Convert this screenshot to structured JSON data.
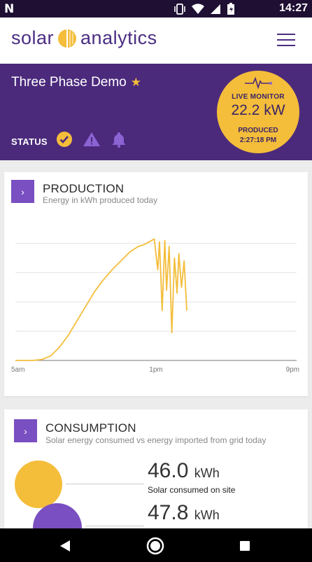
{
  "statusbar": {
    "time": "14:27",
    "notification": "N"
  },
  "app": {
    "logo_left": "solar",
    "logo_right": "analytics",
    "brand_purple": "#4b2a7c",
    "brand_yellow": "#f4bd3a"
  },
  "site": {
    "name": "Three Phase Demo",
    "status_label": "STATUS"
  },
  "live_monitor": {
    "label": "LIVE MONITOR",
    "power": "22.2 kW",
    "produced_label": "PRODUCED",
    "produced_time": "2:27:18 PM"
  },
  "production": {
    "title": "PRODUCTION",
    "subtitle": "Energy in kWh produced today",
    "chart_data": {
      "type": "line",
      "x_tick_labels": [
        "5am",
        "1pm",
        "9pm"
      ],
      "series": [
        {
          "x": [
            5.0,
            6.0,
            6.5,
            7.0,
            7.5,
            8.0,
            8.5,
            9.0,
            9.5,
            10.0,
            10.5,
            11.0,
            11.5,
            12.0,
            12.3,
            12.6,
            12.9,
            13.1,
            13.2,
            13.35,
            13.5,
            13.6,
            13.75,
            13.9,
            14.05,
            14.2,
            14.3,
            14.45,
            14.6,
            14.75
          ],
          "y": [
            0,
            0,
            0.3,
            1.5,
            4.5,
            8.5,
            13.5,
            18.5,
            23.5,
            27.5,
            31.0,
            34.0,
            37.0,
            39.0,
            39.5,
            40.5,
            41.5,
            31.0,
            40.5,
            17.0,
            41.0,
            24.0,
            39.0,
            9.5,
            35.0,
            23.0,
            36.5,
            25.0,
            34.0,
            17.0
          ]
        }
      ],
      "ylim": [
        0,
        50
      ],
      "xlim": [
        5,
        21
      ],
      "grid": true
    }
  },
  "consumption": {
    "title": "CONSUMPTION",
    "subtitle": "Solar energy consumed vs energy imported from grid today",
    "solar_value": "46.0",
    "solar_unit": "kWh",
    "solar_label": "Solar consumed on site",
    "grid_value": "47.8",
    "grid_unit": "kWh",
    "solar_color": "#f4bd3a",
    "grid_color": "#7a4fc1"
  },
  "icons": {
    "chevron": "›",
    "star": "★"
  }
}
